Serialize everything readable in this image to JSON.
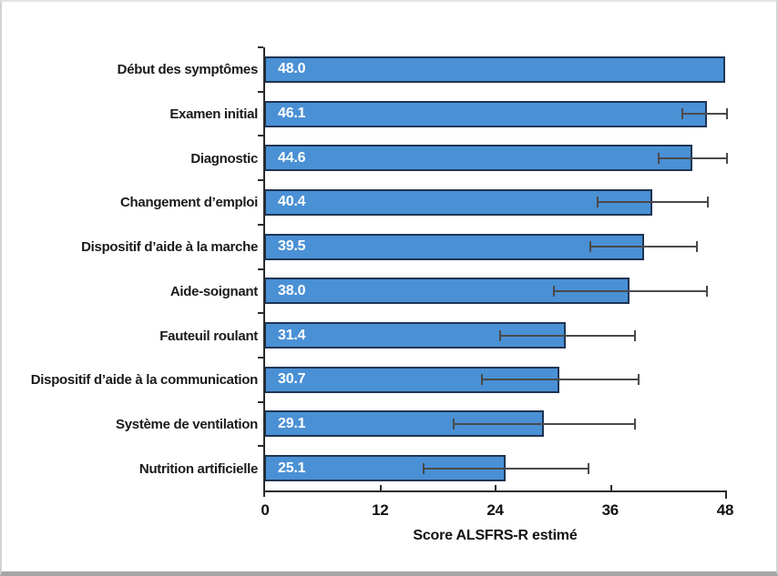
{
  "chart_data": {
    "type": "bar",
    "orientation": "horizontal",
    "title": "",
    "xlabel": "Score ALSFRS-R estimé",
    "ylabel": "",
    "xlim": [
      0,
      48
    ],
    "x_ticks": [
      "0",
      "12",
      "24",
      "36",
      "48"
    ],
    "x_tick_values": [
      0,
      12,
      24,
      36,
      48
    ],
    "grid": false,
    "legend": false,
    "bar_color": "#4a90d5",
    "bar_border_color": "#1f3553",
    "error_bar_color": "#4a4a4a",
    "axis_color": "#2b2b2b",
    "categories": [
      "Début des symptômes",
      "Examen initial",
      "Diagnostic",
      "Changement d’emploi",
      "Dispositif d’aide à la marche",
      "Aide-soignant",
      "Fauteuil roulant",
      "Dispositif d’aide à la communication",
      "Système de ventilation",
      "Nutrition artificielle"
    ],
    "values": [
      48.0,
      46.1,
      44.6,
      40.4,
      39.5,
      38.0,
      31.4,
      30.7,
      29.1,
      25.1
    ],
    "value_labels": [
      "48.0",
      "46.1",
      "44.6",
      "40.4",
      "39.5",
      "38.0",
      "31.4",
      "30.7",
      "29.1",
      "25.1"
    ],
    "error_bars": [
      null,
      {
        "low": 43.5,
        "high": 48.2
      },
      {
        "low": 41.1,
        "high": 48.2
      },
      {
        "low": 34.7,
        "high": 46.2
      },
      {
        "low": 33.9,
        "high": 45.1
      },
      {
        "low": 30.1,
        "high": 46.1
      },
      {
        "low": 24.5,
        "high": 38.6
      },
      {
        "low": 22.6,
        "high": 39.0
      },
      {
        "low": 19.7,
        "high": 38.6
      },
      {
        "low": 16.5,
        "high": 33.7
      }
    ]
  }
}
